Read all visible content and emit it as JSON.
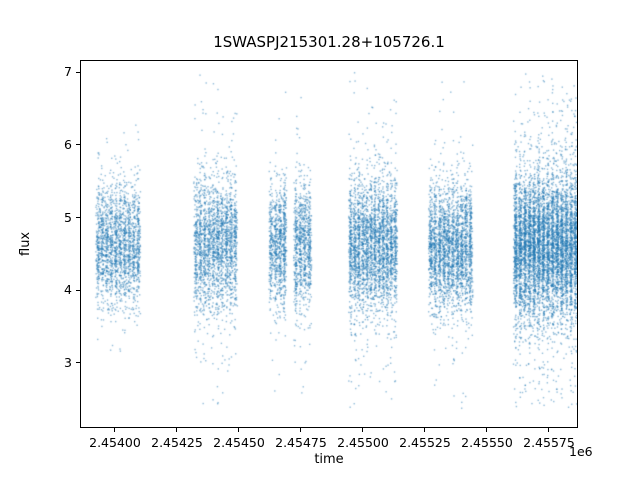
{
  "chart_data": {
    "type": "scatter",
    "title": "1SWASPJ215301.28+105726.1",
    "xlabel": "time",
    "ylabel": "flux",
    "x_offset_label": "1e6",
    "xlim": [
      2453859,
      2455867
    ],
    "ylim": [
      2.1,
      7.17
    ],
    "xticks": [
      2454000,
      2454250,
      2454500,
      2454750,
      2455000,
      2455250,
      2455500,
      2455750
    ],
    "xtick_labels": [
      "2.45400",
      "2.45425",
      "2.45450",
      "2.45475",
      "2.45500",
      "2.45525",
      "2.45550",
      "2.45575"
    ],
    "yticks": [
      3,
      4,
      5,
      6,
      7
    ],
    "ytick_labels": [
      "3",
      "4",
      "5",
      "6",
      "7"
    ],
    "marker_color": "#1f77b4",
    "marker_color_rgba": "rgba(31,119,180,0.5)",
    "marker_size_px": 1.4,
    "flux_min": 2.38,
    "flux_max": 7.05,
    "grid": false,
    "legend": "none",
    "seed": 42,
    "clusters": [
      {
        "center": 2454010,
        "half_width": 90,
        "n": 2000,
        "flux_mean": 4.62,
        "flux_std": 0.42,
        "outlier_frac": 0.06,
        "outlier_std": 0.85,
        "bands": 10,
        "band_frac": 0.5
      },
      {
        "center": 2454403,
        "half_width": 88,
        "n": 2200,
        "flux_mean": 4.62,
        "flux_std": 0.44,
        "outlier_frac": 0.1,
        "outlier_std": 1.0,
        "bands": 10,
        "band_frac": 0.5
      },
      {
        "center": 2454654,
        "half_width": 36,
        "n": 900,
        "flux_mean": 4.6,
        "flux_std": 0.42,
        "outlier_frac": 0.06,
        "outlier_std": 1.0,
        "bands": 4,
        "band_frac": 0.5
      },
      {
        "center": 2454754,
        "half_width": 36,
        "n": 900,
        "flux_mean": 4.6,
        "flux_std": 0.42,
        "outlier_frac": 0.07,
        "outlier_std": 1.0,
        "bands": 4,
        "band_frac": 0.5
      },
      {
        "center": 2455038,
        "half_width": 98,
        "n": 3000,
        "flux_mean": 4.62,
        "flux_std": 0.44,
        "outlier_frac": 0.1,
        "outlier_std": 1.0,
        "bands": 12,
        "band_frac": 0.55
      },
      {
        "center": 2455351,
        "half_width": 89,
        "n": 2600,
        "flux_mean": 4.6,
        "flux_std": 0.44,
        "outlier_frac": 0.08,
        "outlier_std": 0.95,
        "bands": 10,
        "band_frac": 0.5
      },
      {
        "center": 2455734,
        "half_width": 130,
        "n": 6500,
        "flux_mean": 4.6,
        "flux_std": 0.48,
        "outlier_frac": 0.17,
        "outlier_std": 1.1,
        "bands": 14,
        "band_frac": 0.6
      }
    ]
  }
}
